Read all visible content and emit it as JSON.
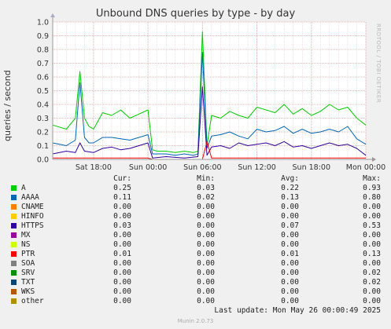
{
  "chart_data": {
    "type": "line",
    "title": "Unbound DNS queries by type - by day",
    "ylabel": "queries / second",
    "ylim": [
      0,
      1.0
    ],
    "yticks": [
      "0.0",
      "0.1",
      "0.2",
      "0.3",
      "0.4",
      "0.5",
      "0.6",
      "0.7",
      "0.8",
      "0.9",
      "1.0"
    ],
    "x_ticks": [
      {
        "label": "Sat 18:00",
        "t": 6
      },
      {
        "label": "Sun 00:00",
        "t": 12
      },
      {
        "label": "Sun 06:00",
        "t": 18
      },
      {
        "label": "Sun 12:00",
        "t": 24
      },
      {
        "label": "Sun 18:00",
        "t": 30
      },
      {
        "label": "Mon 00:00",
        "t": 36
      }
    ],
    "x_range_hours": [
      1.5,
      36
    ],
    "watermark": "RRDTOOL / TOBI OETIKER",
    "grid": true,
    "series": [
      {
        "name": "A",
        "color": "#00cc00",
        "x": [
          1.5,
          3,
          4,
          4.5,
          5,
          5.5,
          6,
          7,
          8,
          9,
          10,
          11,
          12,
          12.5,
          13,
          14,
          15,
          16,
          17,
          17.5,
          18,
          18.5,
          19,
          20,
          21,
          22,
          23,
          24,
          25,
          26,
          27,
          28,
          29,
          30,
          31,
          32,
          33,
          34,
          35,
          36
        ],
        "y": [
          0.25,
          0.22,
          0.3,
          0.64,
          0.3,
          0.24,
          0.22,
          0.34,
          0.32,
          0.36,
          0.3,
          0.33,
          0.36,
          0.07,
          0.06,
          0.06,
          0.05,
          0.06,
          0.05,
          0.06,
          0.93,
          0.1,
          0.32,
          0.3,
          0.35,
          0.32,
          0.3,
          0.38,
          0.36,
          0.34,
          0.4,
          0.33,
          0.37,
          0.32,
          0.35,
          0.4,
          0.36,
          0.38,
          0.3,
          0.25
        ]
      },
      {
        "name": "AAAA",
        "color": "#0066b3",
        "x": [
          1.5,
          3,
          4,
          4.5,
          5,
          5.5,
          6,
          7,
          8,
          9,
          10,
          11,
          12,
          12.5,
          13,
          14,
          15,
          16,
          17,
          17.5,
          18,
          18.5,
          19,
          20,
          21,
          22,
          23,
          24,
          25,
          26,
          27,
          28,
          29,
          30,
          31,
          32,
          33,
          34,
          35,
          36
        ],
        "y": [
          0.12,
          0.1,
          0.14,
          0.56,
          0.16,
          0.12,
          0.12,
          0.16,
          0.16,
          0.15,
          0.14,
          0.16,
          0.18,
          0.04,
          0.04,
          0.04,
          0.03,
          0.04,
          0.03,
          0.04,
          0.78,
          0.08,
          0.17,
          0.18,
          0.2,
          0.17,
          0.15,
          0.22,
          0.2,
          0.21,
          0.24,
          0.19,
          0.22,
          0.19,
          0.2,
          0.22,
          0.2,
          0.24,
          0.15,
          0.11
        ]
      },
      {
        "name": "CNAME",
        "color": "#ff8000",
        "x": [
          1.5,
          36
        ],
        "y": [
          0.0,
          0.0
        ]
      },
      {
        "name": "HINFO",
        "color": "#ffcc00",
        "x": [
          1.5,
          36
        ],
        "y": [
          0.0,
          0.0
        ]
      },
      {
        "name": "HTTPS",
        "color": "#330099",
        "x": [
          1.5,
          3,
          4,
          4.5,
          5,
          6,
          7,
          8,
          9,
          10,
          11,
          12,
          12.5,
          14,
          16,
          17.5,
          18,
          18.5,
          19,
          20,
          21,
          22,
          23,
          24,
          25,
          26,
          27,
          28,
          29,
          30,
          31,
          32,
          33,
          34,
          35,
          36
        ],
        "y": [
          0.04,
          0.06,
          0.05,
          0.12,
          0.06,
          0.05,
          0.08,
          0.09,
          0.07,
          0.08,
          0.1,
          0.12,
          0.01,
          0.02,
          0.01,
          0.02,
          0.53,
          0.03,
          0.09,
          0.1,
          0.08,
          0.12,
          0.1,
          0.11,
          0.12,
          0.1,
          0.13,
          0.09,
          0.1,
          0.08,
          0.1,
          0.12,
          0.1,
          0.11,
          0.08,
          0.03
        ]
      },
      {
        "name": "MX",
        "color": "#990099",
        "x": [
          1.5,
          36
        ],
        "y": [
          0.0,
          0.0
        ]
      },
      {
        "name": "NS",
        "color": "#ccff00",
        "x": [
          1.5,
          36
        ],
        "y": [
          0.0,
          0.0
        ]
      },
      {
        "name": "PTR",
        "color": "#ff0000",
        "x": [
          1.5,
          6,
          12,
          12.5,
          18,
          18.5,
          19,
          24,
          30,
          36
        ],
        "y": [
          0.01,
          0.01,
          0.01,
          0.0,
          0.0,
          0.13,
          0.01,
          0.01,
          0.01,
          0.01
        ]
      },
      {
        "name": "SOA",
        "color": "#808080",
        "x": [
          1.5,
          36
        ],
        "y": [
          0.0,
          0.0
        ]
      },
      {
        "name": "SRV",
        "color": "#008f00",
        "x": [
          1.5,
          36
        ],
        "y": [
          0.0,
          0.0
        ]
      },
      {
        "name": "TXT",
        "color": "#00487d",
        "x": [
          1.5,
          36
        ],
        "y": [
          0.0,
          0.0
        ]
      },
      {
        "name": "WKS",
        "color": "#b35a00",
        "x": [
          1.5,
          36
        ],
        "y": [
          0.0,
          0.0
        ]
      },
      {
        "name": "other",
        "color": "#b38f00",
        "x": [
          1.5,
          36
        ],
        "y": [
          0.0,
          0.0
        ]
      }
    ]
  },
  "legend": {
    "headers": {
      "cur": "Cur:",
      "min": "Min:",
      "avg": "Avg:",
      "max": "Max:"
    },
    "rows": [
      {
        "name": "A",
        "color": "#00cc00",
        "cur": "0.25",
        "min": "0.03",
        "avg": "0.22",
        "max": "0.93"
      },
      {
        "name": "AAAA",
        "color": "#0066b3",
        "cur": "0.11",
        "min": "0.02",
        "avg": "0.13",
        "max": "0.80"
      },
      {
        "name": "CNAME",
        "color": "#ff8000",
        "cur": "0.00",
        "min": "0.00",
        "avg": "0.00",
        "max": "0.00"
      },
      {
        "name": "HINFO",
        "color": "#ffcc00",
        "cur": "0.00",
        "min": "0.00",
        "avg": "0.00",
        "max": "0.00"
      },
      {
        "name": "HTTPS",
        "color": "#330099",
        "cur": "0.03",
        "min": "0.00",
        "avg": "0.07",
        "max": "0.53"
      },
      {
        "name": "MX",
        "color": "#990099",
        "cur": "0.00",
        "min": "0.00",
        "avg": "0.00",
        "max": "0.00"
      },
      {
        "name": "NS",
        "color": "#ccff00",
        "cur": "0.00",
        "min": "0.00",
        "avg": "0.00",
        "max": "0.00"
      },
      {
        "name": "PTR",
        "color": "#ff0000",
        "cur": "0.01",
        "min": "0.00",
        "avg": "0.01",
        "max": "0.13"
      },
      {
        "name": "SOA",
        "color": "#808080",
        "cur": "0.00",
        "min": "0.00",
        "avg": "0.00",
        "max": "0.00"
      },
      {
        "name": "SRV",
        "color": "#008f00",
        "cur": "0.00",
        "min": "0.00",
        "avg": "0.00",
        "max": "0.02"
      },
      {
        "name": "TXT",
        "color": "#00487d",
        "cur": "0.00",
        "min": "0.00",
        "avg": "0.00",
        "max": "0.02"
      },
      {
        "name": "WKS",
        "color": "#b35a00",
        "cur": "0.00",
        "min": "0.00",
        "avg": "0.00",
        "max": "0.00"
      },
      {
        "name": "other",
        "color": "#b38f00",
        "cur": "0.00",
        "min": "0.00",
        "avg": "0.00",
        "max": "0.00"
      }
    ]
  },
  "footer": {
    "last_update": "Last update: Mon May 26 00:00:49 2025",
    "munin": "Munin 2.0.73"
  }
}
